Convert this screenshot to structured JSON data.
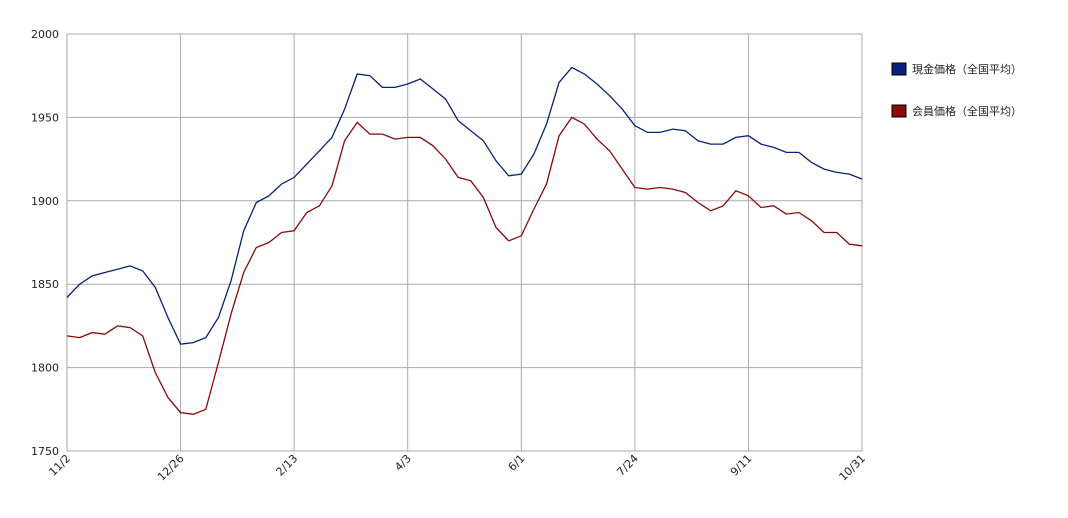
{
  "chart_data": {
    "type": "line",
    "categories": [
      "11/2",
      null,
      null,
      null,
      null,
      null,
      null,
      null,
      null,
      "12/26",
      null,
      null,
      null,
      null,
      null,
      null,
      null,
      null,
      "2/13",
      null,
      null,
      null,
      null,
      null,
      null,
      null,
      null,
      "4/3",
      null,
      null,
      null,
      null,
      null,
      null,
      null,
      null,
      "6/1",
      null,
      null,
      null,
      null,
      null,
      null,
      null,
      null,
      "7/24",
      null,
      null,
      null,
      null,
      null,
      null,
      null,
      null,
      "9/11",
      null,
      null,
      null,
      null,
      null,
      null,
      null,
      null,
      "10/31"
    ],
    "series": [
      {
        "name": "現金価格（全国平均）",
        "color": "#0a1f7a",
        "values": [
          1842,
          1850,
          1855,
          1857,
          1859,
          1861,
          1858,
          1848,
          1830,
          1814,
          1815,
          1818,
          1830,
          1852,
          1882,
          1899,
          1903,
          1910,
          1914,
          1922,
          1930,
          1938,
          1955,
          1976,
          1975,
          1968,
          1968,
          1970,
          1973,
          1967,
          1961,
          1948,
          1942,
          1936,
          1924,
          1915,
          1916,
          1928,
          1946,
          1971,
          1980,
          1976,
          1970,
          1963,
          1955,
          1945,
          1941,
          1941,
          1943,
          1942,
          1936,
          1934,
          1934,
          1938,
          1939,
          1934,
          1932,
          1929,
          1929,
          1923,
          1919,
          1917,
          1916,
          1913
        ]
      },
      {
        "name": "会員価格（全国平均）",
        "color": "#8a0a0a",
        "values": [
          1819,
          1818,
          1821,
          1820,
          1825,
          1824,
          1819,
          1797,
          1782,
          1773,
          1772,
          1775,
          1803,
          1832,
          1857,
          1872,
          1875,
          1881,
          1882,
          1893,
          1897,
          1909,
          1936,
          1947,
          1940,
          1940,
          1937,
          1938,
          1938,
          1933,
          1925,
          1914,
          1912,
          1902,
          1884,
          1876,
          1879,
          1895,
          1910,
          1939,
          1950,
          1946,
          1937,
          1930,
          1919,
          1908,
          1907,
          1908,
          1907,
          1905,
          1899,
          1894,
          1897,
          1906,
          1903,
          1896,
          1897,
          1892,
          1893,
          1888,
          1881,
          1881,
          1874,
          1873
        ]
      }
    ],
    "ylim": [
      1750,
      2000
    ],
    "yticks": [
      1750,
      1800,
      1850,
      1900,
      1950,
      2000
    ],
    "grid": true,
    "legend": "right"
  }
}
